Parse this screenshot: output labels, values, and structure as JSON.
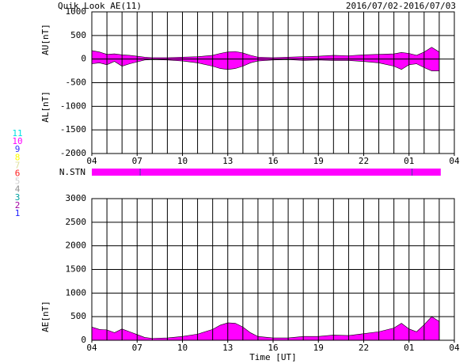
{
  "title": "Quik Look AE(11)",
  "date_range": "2016/07/02-2016/07/03",
  "xlabel": "Time [UT]",
  "stations": {
    "labels": [
      "11",
      "10",
      "9",
      "8",
      "7",
      "6",
      "5",
      "4",
      "3",
      "2",
      "1"
    ],
    "colors": [
      "#00e0e0",
      "#ff00ff",
      "#3030ff",
      "#ffff00",
      "#e0e0a0",
      "#ff2020",
      "#d0d0d0",
      "#909090",
      "#00a0a0",
      "#a000a0",
      "#2020ff"
    ]
  },
  "station_bar": {
    "label": "N.STN",
    "start": 0,
    "end": 23.1,
    "markers": [
      3.2,
      21.2
    ],
    "color": "#ff00ff"
  },
  "chart_data": [
    {
      "type": "area",
      "ylabels": [
        "AU[nT]",
        "AL[nT]"
      ],
      "x": [
        0,
        0.5,
        1,
        1.5,
        2,
        2.5,
        3,
        3.5,
        4,
        5,
        6,
        7,
        8,
        8.5,
        9,
        9.5,
        10,
        10.5,
        11,
        12,
        13,
        14,
        15,
        16,
        17,
        18,
        19,
        20,
        20.5,
        21,
        21.5,
        22,
        22.5,
        23
      ],
      "series": [
        {
          "name": "AU",
          "color": "#ff00ff",
          "values": [
            180,
            150,
            100,
            110,
            90,
            80,
            60,
            40,
            30,
            30,
            40,
            50,
            80,
            120,
            150,
            160,
            130,
            80,
            40,
            30,
            40,
            50,
            60,
            80,
            70,
            90,
            100,
            110,
            140,
            120,
            80,
            150,
            250,
            150
          ]
        },
        {
          "name": "AL",
          "color": "#ff00ff",
          "values": [
            -100,
            -80,
            -120,
            -50,
            -150,
            -100,
            -60,
            -20,
            -10,
            -20,
            -40,
            -80,
            -150,
            -200,
            -220,
            -200,
            -150,
            -80,
            -40,
            -20,
            -10,
            -30,
            -20,
            -30,
            -30,
            -50,
            -80,
            -150,
            -220,
            -120,
            -100,
            -180,
            -250,
            -250
          ]
        }
      ],
      "xlim": [
        0,
        24
      ],
      "xticks": [
        {
          "value": 0,
          "label": "04"
        },
        {
          "value": 3,
          "label": "07"
        },
        {
          "value": 6,
          "label": "10"
        },
        {
          "value": 9,
          "label": "13"
        },
        {
          "value": 12,
          "label": "16"
        },
        {
          "value": 15,
          "label": "19"
        },
        {
          "value": 18,
          "label": "22"
        },
        {
          "value": 21,
          "label": "01"
        },
        {
          "value": 24,
          "label": "04"
        }
      ],
      "xgrid": [
        0,
        1,
        2,
        3,
        4,
        5,
        6,
        7,
        8,
        9,
        10,
        11,
        12,
        13,
        14,
        15,
        16,
        17,
        18,
        19,
        20,
        21,
        22,
        23,
        24
      ],
      "ylim": [
        -2000,
        1000
      ],
      "yticks": [
        -2000,
        -1500,
        -1000,
        -500,
        0,
        500,
        1000
      ],
      "grid": true
    },
    {
      "type": "area",
      "ylabels": [
        "AE[nT]"
      ],
      "x": [
        0,
        0.5,
        1,
        1.5,
        2,
        2.5,
        3,
        3.5,
        4,
        5,
        6,
        7,
        8,
        8.5,
        9,
        9.5,
        10,
        10.5,
        11,
        12,
        13,
        14,
        15,
        16,
        17,
        18,
        19,
        20,
        20.5,
        21,
        21.5,
        22,
        22.5,
        23
      ],
      "series": [
        {
          "name": "AE",
          "color": "#ff00ff",
          "values": [
            280,
            230,
            220,
            160,
            240,
            180,
            120,
            60,
            40,
            50,
            80,
            130,
            230,
            320,
            370,
            360,
            280,
            160,
            80,
            50,
            50,
            80,
            80,
            110,
            100,
            140,
            180,
            260,
            360,
            240,
            180,
            330,
            500,
            400
          ]
        }
      ],
      "xlim": [
        0,
        24
      ],
      "xticks": [
        {
          "value": 0,
          "label": "04"
        },
        {
          "value": 3,
          "label": "07"
        },
        {
          "value": 6,
          "label": "10"
        },
        {
          "value": 9,
          "label": "13"
        },
        {
          "value": 12,
          "label": "16"
        },
        {
          "value": 15,
          "label": "19"
        },
        {
          "value": 18,
          "label": "22"
        },
        {
          "value": 21,
          "label": "01"
        },
        {
          "value": 24,
          "label": "04"
        }
      ],
      "xgrid": [
        0,
        1,
        2,
        3,
        4,
        5,
        6,
        7,
        8,
        9,
        10,
        11,
        12,
        13,
        14,
        15,
        16,
        17,
        18,
        19,
        20,
        21,
        22,
        23,
        24
      ],
      "ylim": [
        0,
        3000
      ],
      "yticks": [
        0,
        500,
        1000,
        1500,
        2000,
        2500,
        3000
      ],
      "grid": true
    }
  ]
}
